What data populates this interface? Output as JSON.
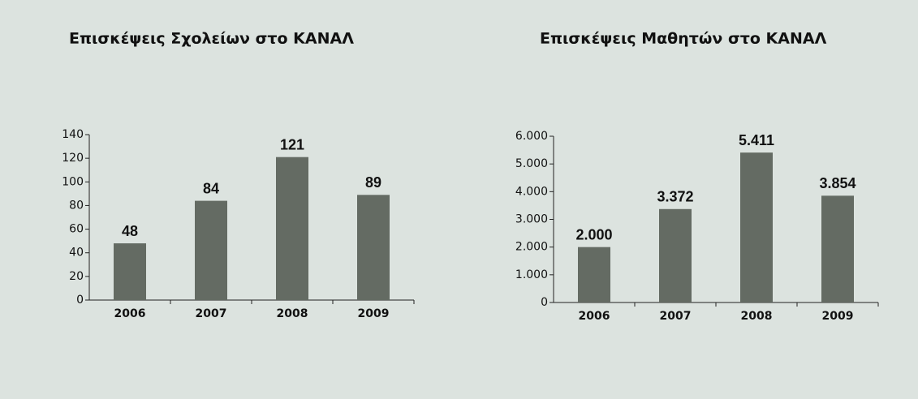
{
  "chart_data": [
    {
      "type": "bar",
      "title": "Επισκέψεις Σχολείων στο ΚΑΝΑΛ",
      "categories": [
        "2006",
        "2007",
        "2008",
        "2009"
      ],
      "values": [
        48,
        84,
        121,
        89
      ],
      "color": "#646b63",
      "ylim": [
        0,
        140
      ],
      "yticks": [
        0,
        20,
        40,
        60,
        80,
        100,
        120,
        140
      ],
      "grid": false
    },
    {
      "type": "bar",
      "title": "Επισκέψεις Μαθητών στο ΚΑΝΑΛ",
      "categories": [
        "2006",
        "2007",
        "2008",
        "2009"
      ],
      "values": [
        2000,
        3372,
        5411,
        3854
      ],
      "value_labels": [
        "2.000",
        "3.372",
        "5.411",
        "3.854"
      ],
      "color": "#646b63",
      "ylim": [
        0,
        6000
      ],
      "yticks": [
        0,
        {
          "value": 1000,
          "label": "1.000"
        },
        {
          "value": 2000,
          "label": "2.000"
        },
        {
          "value": 3000,
          "label": "3.000"
        },
        {
          "value": 4000,
          "label": "4.000"
        },
        {
          "value": 5000,
          "label": "5.000"
        },
        {
          "value": 6000,
          "label": "6.000"
        }
      ],
      "grid": false
    }
  ]
}
